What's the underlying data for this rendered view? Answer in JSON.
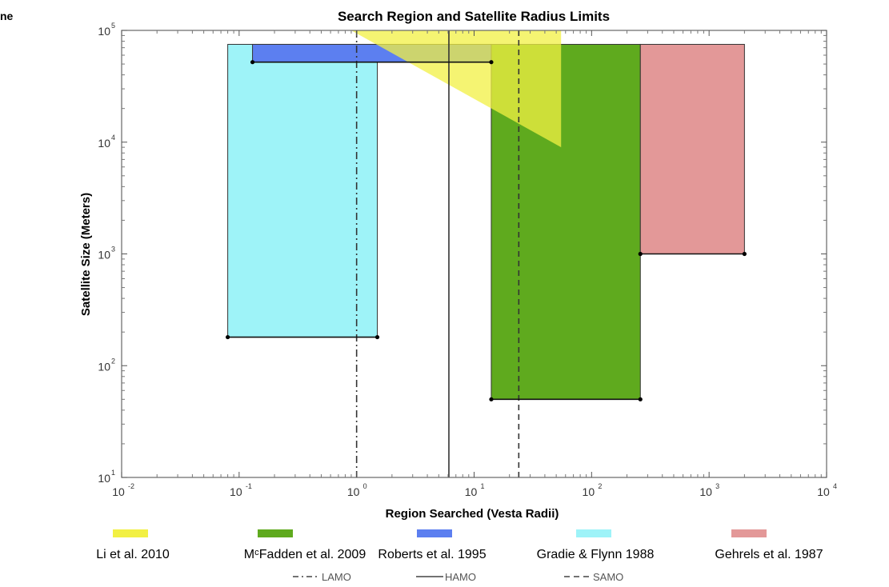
{
  "crop_fragment": "ne",
  "chart_data": {
    "type": "area",
    "title": "Search Region and Satellite Radius Limits",
    "xlabel": "Region Searched (Vesta Radii)",
    "ylabel": "Satellite Size (Meters)",
    "xscale": "log",
    "yscale": "log",
    "xlim": [
      0.01,
      10000
    ],
    "ylim": [
      10,
      100000
    ],
    "grid": false,
    "x_ticks": [
      {
        "base": "10",
        "exp": "-2",
        "value": 0.01
      },
      {
        "base": "10",
        "exp": "-1",
        "value": 0.1
      },
      {
        "base": "10",
        "exp": "0",
        "value": 1
      },
      {
        "base": "10",
        "exp": "1",
        "value": 10
      },
      {
        "base": "10",
        "exp": "2",
        "value": 100
      },
      {
        "base": "10",
        "exp": "3",
        "value": 1000
      },
      {
        "base": "10",
        "exp": "4",
        "value": 10000
      }
    ],
    "y_ticks": [
      {
        "base": "10",
        "exp": "1",
        "value": 10
      },
      {
        "base": "10",
        "exp": "2",
        "value": 100
      },
      {
        "base": "10",
        "exp": "3",
        "value": 1000
      },
      {
        "base": "10",
        "exp": "4",
        "value": 10000
      },
      {
        "base": "10",
        "exp": "5",
        "value": 100000
      }
    ],
    "regions": [
      {
        "name": "Gradie & Flynn 1988",
        "color": "#9ef3f8",
        "x": [
          0.08,
          1.5
        ],
        "y": [
          180,
          75000
        ]
      },
      {
        "name": "MᶜFadden et al. 2009",
        "color": "#5faa1e",
        "x": [
          14,
          260
        ],
        "y": [
          50,
          75000
        ]
      },
      {
        "name": "Gehrels et al. 1987",
        "color": "#e39898",
        "x": [
          260,
          2000
        ],
        "y": [
          1000,
          75000
        ]
      },
      {
        "name": "Roberts et al. 1995",
        "color": "#5c7ff0",
        "x": [
          0.13,
          14
        ],
        "y": [
          52000,
          75000
        ]
      },
      {
        "name": "Li et al. 2010",
        "color": "#f2f043",
        "alpha": 0.75,
        "polygon": [
          [
            0.9,
            100000
          ],
          [
            55,
            100000
          ],
          [
            55,
            9000
          ]
        ]
      }
    ],
    "boundary_lines": [
      {
        "series": "Gradie & Flynn 1988",
        "x": [
          0.08,
          1.5
        ],
        "y": 180
      },
      {
        "series": "MᶜFadden et al. 2009",
        "x": [
          14,
          260
        ],
        "y": 50
      },
      {
        "series": "Gehrels et al. 1987",
        "x": [
          260,
          2000
        ],
        "y": 1000
      },
      {
        "series": "Roberts et al. 1995",
        "x": [
          0.13,
          14
        ],
        "y": 52000
      }
    ],
    "vertical_lines": [
      {
        "name": "LAMO",
        "x": 1,
        "style": "dashdot"
      },
      {
        "name": "HAMO",
        "x": 6.1,
        "style": "solid"
      },
      {
        "name": "SAMO",
        "x": 24,
        "style": "dashed"
      }
    ],
    "legend": {
      "placement": "bottom",
      "items": [
        {
          "label": "Li et al. 2010",
          "color": "#f2f043"
        },
        {
          "label": "MᶜFadden et al. 2009",
          "color": "#5faa1e"
        },
        {
          "label": "Roberts et al. 1995",
          "color": "#5c7ff0"
        },
        {
          "label": "Gradie & Flynn 1988",
          "color": "#9ef3f8"
        },
        {
          "label": "Gehrels et al. 1987",
          "color": "#e39898"
        }
      ],
      "line_items": [
        {
          "label": "LAMO",
          "style": "dashdot"
        },
        {
          "label": "HAMO",
          "style": "solid"
        },
        {
          "label": "SAMO",
          "style": "dashed"
        }
      ]
    }
  }
}
